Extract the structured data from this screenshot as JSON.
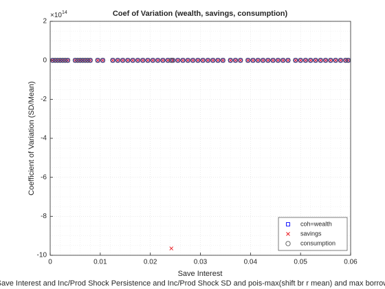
{
  "chart_data": {
    "type": "scatter",
    "title": "Coef of Variation (wealth, savings, consumption)",
    "xlabel": "Save Interest",
    "ylabel": "Coefficient of Variation (SD/Mean)",
    "caption": "Save Interest and Inc/Prod Shock Persistence and Inc/Prod Shock SD and pois-max(shift br r mean) and max borrow",
    "yexponent_base": "×10",
    "yexponent_power": "14",
    "xlim": [
      0,
      0.06
    ],
    "xticks": [
      0,
      0.01,
      0.02,
      0.03,
      0.04,
      0.05,
      0.06
    ],
    "ylim": [
      -10,
      2
    ],
    "yticks": [
      -10,
      -8,
      -6,
      -4,
      -2,
      0,
      2
    ],
    "grid": true,
    "legend": "lower right",
    "x": [
      0.0005,
      0.001,
      0.0015,
      0.002,
      0.0025,
      0.003,
      0.0035,
      0.005,
      0.0055,
      0.006,
      0.0065,
      0.007,
      0.0075,
      0.008,
      0.0095,
      0.0105,
      0.0125,
      0.0135,
      0.0145,
      0.0155,
      0.0165,
      0.0175,
      0.0185,
      0.0195,
      0.0205,
      0.0215,
      0.0225,
      0.0235,
      0.0242,
      0.0245,
      0.0255,
      0.0265,
      0.0275,
      0.0285,
      0.0295,
      0.0305,
      0.0315,
      0.0325,
      0.0335,
      0.0345,
      0.036,
      0.037,
      0.038,
      0.0395,
      0.0405,
      0.0415,
      0.0425,
      0.0435,
      0.0445,
      0.0455,
      0.0465,
      0.0475,
      0.049,
      0.05,
      0.051,
      0.052,
      0.053,
      0.054,
      0.055,
      0.056,
      0.057,
      0.058,
      0.059,
      0.0595
    ],
    "series": [
      {
        "name": "coh=wealth",
        "color": "#0000ff",
        "marker": "square",
        "values": [
          0,
          0,
          0,
          0,
          0,
          0,
          0,
          0,
          0,
          0,
          0,
          0,
          0,
          0,
          0,
          0,
          0,
          0,
          0,
          0,
          0,
          0,
          0,
          0,
          0,
          0,
          0,
          0,
          0,
          0,
          0,
          0,
          0,
          0,
          0,
          0,
          0,
          0,
          0,
          0,
          0,
          0,
          0,
          0,
          0,
          0,
          0,
          0,
          0,
          0,
          0,
          0,
          0,
          0,
          0,
          0,
          0,
          0,
          0,
          0,
          0,
          0,
          0,
          0
        ]
      },
      {
        "name": "savings",
        "color": "#e8141a",
        "marker": "x",
        "values": [
          0,
          0,
          0,
          0,
          0,
          0,
          0,
          0,
          0,
          0,
          0,
          0,
          0,
          0,
          0,
          0,
          0,
          0,
          0,
          0,
          0,
          0,
          0,
          0,
          0,
          0,
          0,
          0,
          -9.65,
          0,
          0,
          0,
          0,
          0,
          0,
          0,
          0,
          0,
          0,
          0,
          0,
          0,
          0,
          0,
          0,
          0,
          0,
          0,
          0,
          0,
          0,
          0,
          0,
          0,
          0,
          0,
          0,
          0,
          0,
          0,
          0,
          0,
          0,
          0
        ]
      },
      {
        "name": "consumption",
        "color": "#555555",
        "marker": "circle",
        "values": [
          0,
          0,
          0,
          0,
          0,
          0,
          0,
          0,
          0,
          0,
          0,
          0,
          0,
          0,
          0,
          0,
          0,
          0,
          0,
          0,
          0,
          0,
          0,
          0,
          0,
          0,
          0,
          0,
          0,
          0,
          0,
          0,
          0,
          0,
          0,
          0,
          0,
          0,
          0,
          0,
          0,
          0,
          0,
          0,
          0,
          0,
          0,
          0,
          0,
          0,
          0,
          0,
          0,
          0,
          0,
          0,
          0,
          0,
          0,
          0,
          0,
          0,
          0,
          0
        ]
      }
    ]
  }
}
